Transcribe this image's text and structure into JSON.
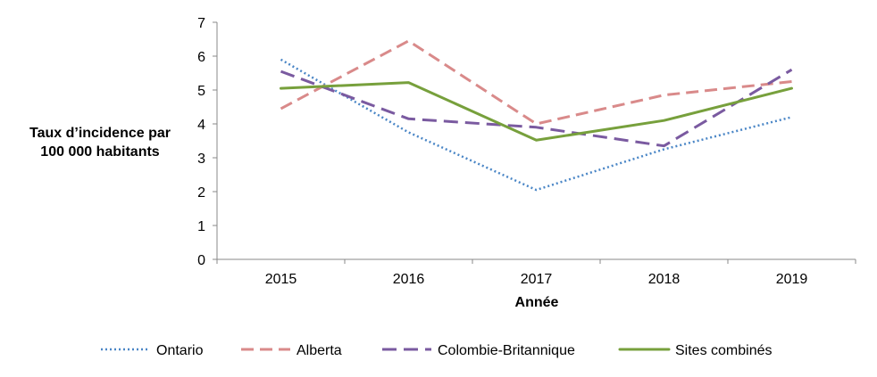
{
  "chart_data": {
    "type": "line",
    "title": "",
    "xlabel": "Année",
    "ylabel_lines": [
      "Taux d’incidence par",
      "100 000 habitants"
    ],
    "categories": [
      "2015",
      "2016",
      "2017",
      "2018",
      "2019"
    ],
    "ylim": [
      0,
      7
    ],
    "yticks": [
      "0",
      "1",
      "2",
      "3",
      "4",
      "5",
      "6",
      "7"
    ],
    "grid": false,
    "legend_position": "bottom",
    "series": [
      {
        "name": "Ontario",
        "values": [
          5.9,
          3.75,
          2.05,
          3.25,
          4.2
        ],
        "color": "#4a86c6",
        "style": "dotted"
      },
      {
        "name": "Alberta",
        "values": [
          4.45,
          6.45,
          4.0,
          4.85,
          5.25
        ],
        "color": "#d98a8a",
        "style": "dashed"
      },
      {
        "name": "Colombie-Britannique",
        "values": [
          5.55,
          4.15,
          3.9,
          3.35,
          5.6
        ],
        "color": "#7a5aa0",
        "style": "long-dashed"
      },
      {
        "name": "Sites combinés",
        "values": [
          5.05,
          5.22,
          3.52,
          4.1,
          5.05
        ],
        "color": "#77a03c",
        "style": "solid"
      }
    ]
  }
}
